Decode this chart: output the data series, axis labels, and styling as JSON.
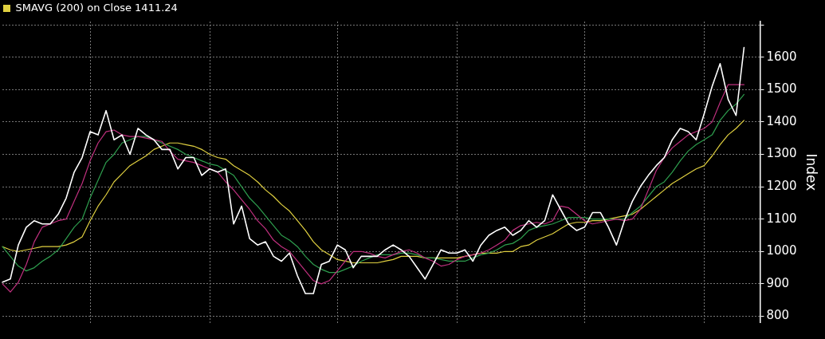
{
  "chart_data": {
    "type": "line",
    "ylabel": "Index",
    "legend": "top left",
    "grid": true,
    "marker": "none",
    "line_style": "solid",
    "ylim": [
      780,
      1710
    ],
    "yticks": [
      800,
      900,
      1000,
      1100,
      1200,
      1300,
      1400,
      1500,
      1600,
      {
        "value": 1700,
        "label": null
      }
    ],
    "categories": [
      null,
      null,
      null,
      null,
      null,
      null,
      null,
      null,
      null,
      null,
      null,
      null,
      null,
      null,
      null,
      null,
      null,
      null,
      null,
      null,
      null,
      null,
      null,
      null,
      null,
      null,
      null,
      null,
      null,
      null,
      null,
      null,
      null,
      null,
      null,
      null,
      null,
      null,
      null,
      null,
      null,
      null,
      null,
      null,
      null,
      null,
      null,
      null,
      null,
      null,
      null,
      null,
      null,
      null,
      null,
      null,
      null,
      null,
      null,
      null,
      null,
      null,
      null,
      null,
      null,
      null,
      null,
      null,
      null,
      null,
      null,
      null,
      null,
      null,
      null,
      null,
      null,
      null,
      null,
      null,
      null,
      null,
      null,
      null,
      null,
      null,
      null,
      null,
      null,
      null,
      null,
      null,
      null,
      null,
      null,
      null
    ],
    "series": [
      {
        "color": "#ffffff",
        "values": [
          905,
          915,
          1020,
          1075,
          1095,
          1085,
          1085,
          1115,
          1165,
          1245,
          1290,
          1370,
          1360,
          1435,
          1345,
          1360,
          1300,
          1380,
          1360,
          1345,
          1315,
          1315,
          1255,
          1290,
          1290,
          1235,
          1255,
          1245,
          1255,
          1085,
          1140,
          1040,
          1020,
          1030,
          985,
          970,
          995,
          925,
          870,
          870,
          960,
          970,
          1020,
          1005,
          950,
          985,
          985,
          985,
          1005,
          1020,
          1005,
          985,
          950,
          915,
          960,
          1005,
          995,
          995,
          1005,
          970,
          1020,
          1050,
          1065,
          1075,
          1050,
          1065,
          1095,
          1075,
          1095,
          1175,
          1130,
          1085,
          1065,
          1075,
          1120,
          1120,
          1075,
          1020,
          1095,
          1155,
          1200,
          1235,
          1265,
          1290,
          1345,
          1380,
          1370,
          1345,
          1425,
          1510,
          1580,
          1470,
          1420,
          1630,
          null,
          null
        ]
      },
      {
        "color": "#c0307f",
        "values": [
          900,
          875,
          905,
          960,
          1030,
          1075,
          1085,
          1095,
          1100,
          1155,
          1210,
          1280,
          1335,
          1370,
          1375,
          1360,
          1355,
          1355,
          1350,
          1345,
          1340,
          1310,
          1285,
          1280,
          1275,
          1265,
          1255,
          1245,
          1215,
          1190,
          1160,
          1130,
          1095,
          1070,
          1035,
          1015,
          1000,
          970,
          940,
          910,
          900,
          910,
          940,
          970,
          1000,
          1000,
          995,
          985,
          980,
          990,
          1000,
          1005,
          995,
          980,
          970,
          955,
          960,
          975,
          985,
          990,
          995,
          1005,
          1020,
          1035,
          1065,
          1080,
          1085,
          1090,
          1085,
          1095,
          1140,
          1135,
          1115,
          1095,
          1085,
          1090,
          1095,
          1100,
          1095,
          1100,
          1130,
          1190,
          1250,
          1290,
          1320,
          1340,
          1360,
          1370,
          1380,
          1400,
          1460,
          1515,
          1515,
          1515,
          null,
          null
        ]
      },
      {
        "color": "#2e9e4e",
        "values": [
          1015,
          985,
          955,
          940,
          950,
          970,
          985,
          1005,
          1040,
          1075,
          1100,
          1165,
          1220,
          1275,
          1300,
          1335,
          1345,
          1355,
          1355,
          1345,
          1335,
          1325,
          1315,
          1300,
          1290,
          1280,
          1270,
          1265,
          1250,
          1235,
          1200,
          1165,
          1140,
          1110,
          1080,
          1050,
          1035,
          1015,
          985,
          960,
          945,
          935,
          935,
          945,
          955,
          970,
          980,
          990,
          990,
          990,
          995,
          995,
          990,
          980,
          980,
          975,
          970,
          970,
          970,
          980,
          990,
          995,
          1005,
          1020,
          1025,
          1040,
          1065,
          1075,
          1080,
          1085,
          1095,
          1105,
          1105,
          1105,
          1100,
          1100,
          1100,
          1100,
          1100,
          1120,
          1140,
          1170,
          1200,
          1215,
          1245,
          1280,
          1310,
          1330,
          1345,
          1360,
          1405,
          1435,
          1455,
          1485,
          null,
          null
        ]
      },
      {
        "name": "SMAVG (200) on Close 1411.24",
        "color": "#e0d040",
        "values": [
          1015,
          1005,
          1000,
          1005,
          1010,
          1015,
          1015,
          1015,
          1020,
          1030,
          1045,
          1095,
          1140,
          1175,
          1215,
          1240,
          1265,
          1280,
          1295,
          1315,
          1325,
          1335,
          1335,
          1330,
          1325,
          1315,
          1300,
          1290,
          1285,
          1265,
          1250,
          1235,
          1215,
          1190,
          1170,
          1145,
          1125,
          1095,
          1065,
          1030,
          1005,
          990,
          975,
          970,
          965,
          965,
          965,
          965,
          970,
          975,
          985,
          985,
          985,
          980,
          980,
          980,
          980,
          980,
          985,
          990,
          995,
          995,
          995,
          1000,
          1000,
          1015,
          1020,
          1035,
          1045,
          1055,
          1070,
          1085,
          1090,
          1090,
          1095,
          1095,
          1100,
          1105,
          1110,
          1115,
          1130,
          1150,
          1170,
          1190,
          1210,
          1225,
          1240,
          1255,
          1265,
          1295,
          1330,
          1360,
          1380,
          1405,
          null,
          null
        ]
      }
    ]
  }
}
